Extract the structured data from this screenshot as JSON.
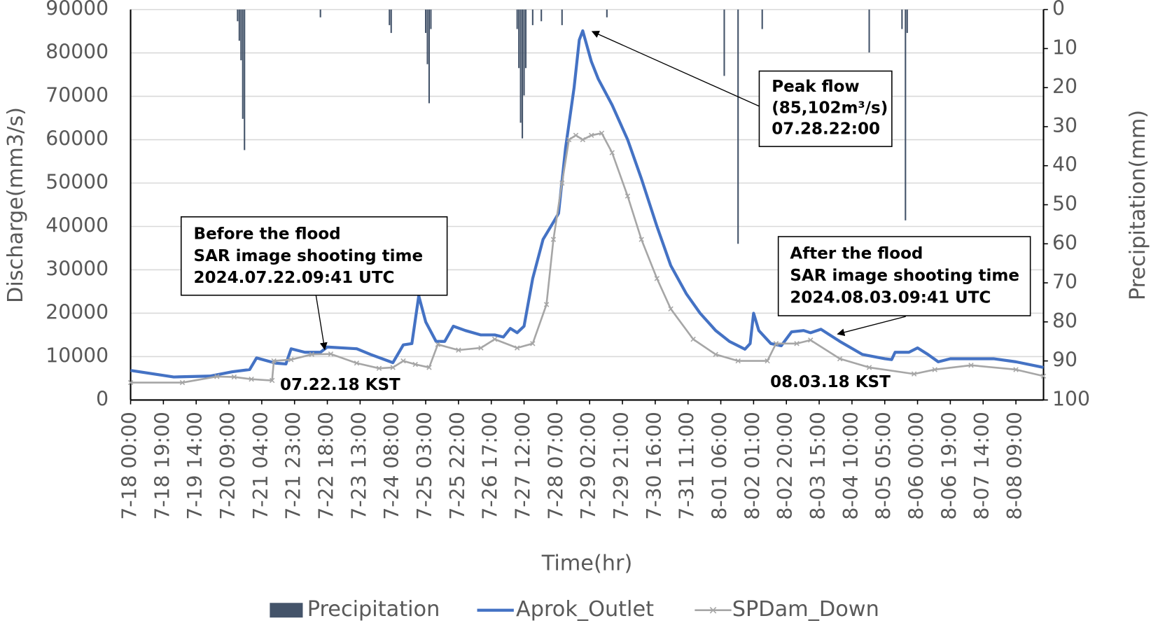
{
  "chart_data": {
    "type": "line",
    "x_label": "Time(hr)",
    "y_label": "Discharge(mm3/s)",
    "y2_label": "Precipitation(mm)",
    "xlim": [
      0,
      529
    ],
    "xticks": [
      {
        "value": 0,
        "label": "7-18 00:00"
      },
      {
        "value": 19,
        "label": "7-18 19:00"
      },
      {
        "value": 38,
        "label": "7-19 14:00"
      },
      {
        "value": 57,
        "label": "7-20 09:00"
      },
      {
        "value": 76,
        "label": "7-21 04:00"
      },
      {
        "value": 95,
        "label": "7-21 23:00"
      },
      {
        "value": 114,
        "label": "7-22 18:00"
      },
      {
        "value": 133,
        "label": "7-23 13:00"
      },
      {
        "value": 152,
        "label": "7-24 08:00"
      },
      {
        "value": 171,
        "label": "7-25 03:00"
      },
      {
        "value": 190,
        "label": "7-25 22:00"
      },
      {
        "value": 209,
        "label": "7-26 17:00"
      },
      {
        "value": 228,
        "label": "7-27 12:00"
      },
      {
        "value": 247,
        "label": "7-28 07:00"
      },
      {
        "value": 266,
        "label": "7-29 02:00"
      },
      {
        "value": 285,
        "label": "7-29 21:00"
      },
      {
        "value": 304,
        "label": "7-30 16:00"
      },
      {
        "value": 323,
        "label": "7-31 11:00"
      },
      {
        "value": 342,
        "label": "8-01 06:00"
      },
      {
        "value": 361,
        "label": "8-02 01:00"
      },
      {
        "value": 380,
        "label": "8-02 20:00"
      },
      {
        "value": 399,
        "label": "8-03 15:00"
      },
      {
        "value": 418,
        "label": "8-04 10:00"
      },
      {
        "value": 437,
        "label": "8-05 05:00"
      },
      {
        "value": 456,
        "label": "8-06 00:00"
      },
      {
        "value": 475,
        "label": "8-06 19:00"
      },
      {
        "value": 494,
        "label": "8-07 14:00"
      },
      {
        "value": 513,
        "label": "8-08 09:00"
      }
    ],
    "ylim": [
      0,
      90000
    ],
    "yticks": [
      0,
      10000,
      20000,
      30000,
      40000,
      50000,
      60000,
      70000,
      80000,
      90000
    ],
    "y2lim": [
      100,
      0
    ],
    "y2ticks": [
      0,
      10,
      20,
      30,
      40,
      50,
      60,
      70,
      80,
      90,
      100
    ],
    "grid": true,
    "legend": "bottom",
    "series": [
      {
        "name": "Precipitation",
        "type": "bar",
        "axis": "y2",
        "color": "#44546a",
        "x": [
          62,
          63,
          64,
          65,
          66,
          110,
          150,
          151,
          171,
          172,
          173,
          174,
          224,
          225,
          226,
          227,
          228,
          229,
          233,
          238,
          250,
          276,
          344,
          352,
          366,
          428,
          447,
          449,
          450
        ],
        "values": [
          3,
          8,
          13,
          28,
          36,
          2,
          4,
          6,
          6,
          14,
          24,
          5,
          5,
          15,
          29,
          33,
          22,
          15,
          4,
          3,
          4,
          2,
          17,
          60,
          5,
          11,
          5,
          54,
          6
        ]
      },
      {
        "name": "Aprok_Outlet",
        "type": "line",
        "color": "#4472c4",
        "x": [
          0,
          25,
          46,
          59,
          69,
          73,
          84,
          90,
          93,
          101,
          110,
          114,
          131,
          139,
          152,
          158,
          163,
          167,
          171,
          177,
          182,
          187,
          194,
          203,
          211,
          216,
          220,
          224,
          228,
          233,
          239,
          245,
          248,
          252,
          257,
          260,
          262,
          267,
          271,
          279,
          288,
          296,
          305,
          313,
          322,
          330,
          339,
          347,
          356,
          359,
          361,
          364,
          371,
          377,
          383,
          390,
          394,
          400,
          411,
          424,
          437,
          441,
          443,
          451,
          456,
          462,
          468,
          475,
          500,
          513,
          529
        ],
        "values": [
          6800,
          5300,
          5500,
          6500,
          7000,
          9700,
          8500,
          8300,
          11800,
          11000,
          11000,
          12200,
          11800,
          10500,
          8600,
          12700,
          13000,
          24000,
          18000,
          13500,
          13500,
          17000,
          16000,
          15000,
          15000,
          14500,
          16500,
          15500,
          17000,
          28000,
          37000,
          41000,
          43000,
          58000,
          72000,
          83000,
          85102,
          78000,
          74000,
          68000,
          60000,
          51000,
          40000,
          31000,
          24500,
          20000,
          16000,
          13500,
          11700,
          13000,
          20000,
          16000,
          13000,
          12500,
          15700,
          16000,
          15500,
          16300,
          13500,
          10500,
          9500,
          9300,
          11000,
          11000,
          12000,
          10500,
          8800,
          9500,
          9500,
          8800,
          7500
        ]
      },
      {
        "name": "SPDam_Down",
        "type": "line",
        "color": "#a6a6a6",
        "x": [
          0,
          30,
          50,
          60,
          70,
          82,
          83,
          93,
          105,
          116,
          131,
          144,
          152,
          158,
          165,
          173,
          178,
          190,
          203,
          211,
          224,
          233,
          241,
          245,
          250,
          254,
          258,
          262,
          267,
          273,
          279,
          288,
          296,
          305,
          313,
          326,
          339,
          352,
          369,
          374,
          386,
          394,
          411,
          428,
          454,
          466,
          487,
          513,
          529
        ],
        "values": [
          4000,
          4000,
          5400,
          5300,
          4800,
          4500,
          9000,
          9300,
          10500,
          10600,
          8500,
          7300,
          7500,
          9000,
          8200,
          7500,
          12800,
          11500,
          12000,
          14000,
          12000,
          13000,
          22000,
          37000,
          50000,
          60000,
          61000,
          60000,
          61000,
          61500,
          57000,
          47000,
          37000,
          28000,
          21000,
          14000,
          10500,
          9000,
          9000,
          13000,
          13000,
          13800,
          9500,
          7500,
          6000,
          7000,
          8000,
          7000,
          5500
        ]
      }
    ],
    "annotations": [
      {
        "lines": [
          "Peak flow",
          "(85,102m³/s)",
          "07.28.22:00"
        ]
      },
      {
        "lines": [
          "Before the flood",
          "SAR image shooting time",
          "2024.07.22.09:41 UTC"
        ]
      },
      {
        "lines": [
          "After the flood",
          "SAR image shooting time",
          "2024.08.03.09:41 UTC"
        ]
      },
      {
        "lines": [
          "07.22.18 KST"
        ]
      },
      {
        "lines": [
          "08.03.18 KST"
        ]
      }
    ]
  }
}
